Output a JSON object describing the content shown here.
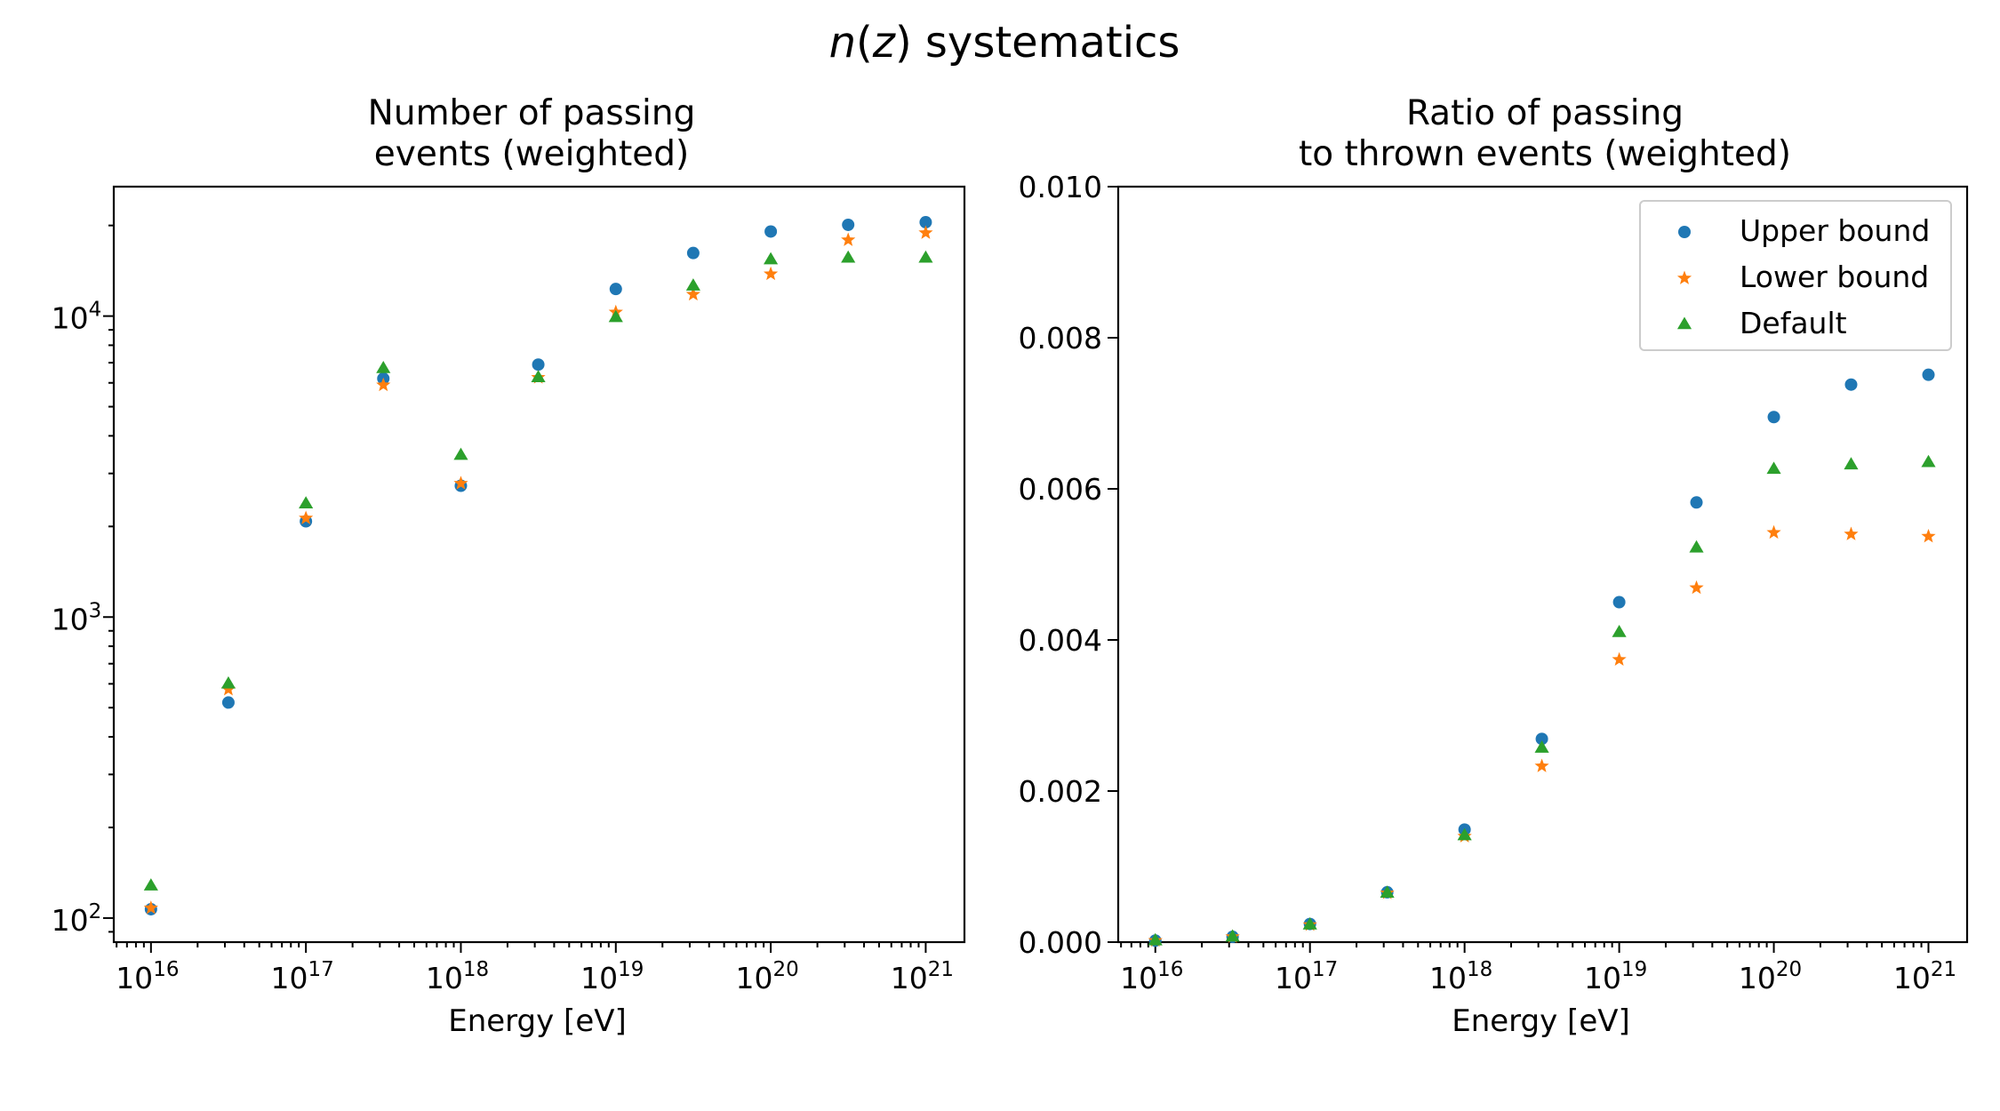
{
  "figure": {
    "suptitle": {
      "italic_prefix": "n",
      "paren_open": "(",
      "italic_var": "z",
      "rest": ") systematics"
    }
  },
  "chart_data": [
    {
      "type": "scatter",
      "title_lines": [
        "Number of passing",
        "events (weighted)"
      ],
      "xlabel": "Energy [eV]",
      "ylabel": "",
      "xscale": "log",
      "yscale": "log",
      "xlim_log10": [
        15.76,
        21.25
      ],
      "ylim_log10": [
        1.92,
        4.43
      ],
      "x_ticks": [
        {
          "base": "10",
          "exp": "16",
          "log10": 16
        },
        {
          "base": "10",
          "exp": "17",
          "log10": 17
        },
        {
          "base": "10",
          "exp": "18",
          "log10": 18
        },
        {
          "base": "10",
          "exp": "19",
          "log10": 19
        },
        {
          "base": "10",
          "exp": "20",
          "log10": 20
        },
        {
          "base": "10",
          "exp": "21",
          "log10": 21
        }
      ],
      "y_ticks": [
        {
          "base": "10",
          "exp": "2",
          "log10": 2
        },
        {
          "base": "10",
          "exp": "3",
          "log10": 3
        },
        {
          "base": "10",
          "exp": "4",
          "log10": 4
        }
      ],
      "x": [
        1e+16,
        3.16e+16,
        1e+17,
        3.16e+17,
        1e+18,
        3.16e+18,
        1e+19,
        3.16e+19,
        1e+20,
        3.16e+20,
        1e+21
      ],
      "series": [
        {
          "name": "Upper bound",
          "marker": "circle",
          "color": "#1f77b4",
          "values": [
            107,
            520,
            2080,
            6200,
            2730,
            6900,
            12300,
            16200,
            19100,
            20100,
            20500
          ]
        },
        {
          "name": "Lower bound",
          "marker": "star",
          "color": "#ff7f0e",
          "values": [
            108,
            575,
            2130,
            5900,
            2780,
            6250,
            10300,
            11800,
            13800,
            17900,
            18900
          ]
        },
        {
          "name": "Default",
          "marker": "triangle",
          "color": "#2ca02c",
          "values": [
            128,
            600,
            2380,
            6700,
            3450,
            6250,
            9900,
            12600,
            15400,
            15600,
            15600
          ]
        }
      ],
      "grid": false,
      "legend": false
    },
    {
      "type": "scatter",
      "title_lines": [
        "Ratio of passing",
        "to thrown events (weighted)"
      ],
      "xlabel": "Energy [eV]",
      "ylabel": "",
      "xscale": "log",
      "yscale": "linear",
      "xlim_log10": [
        15.76,
        21.25
      ],
      "ylim": [
        0,
        0.01
      ],
      "x_ticks": [
        {
          "base": "10",
          "exp": "16",
          "log10": 16
        },
        {
          "base": "10",
          "exp": "17",
          "log10": 17
        },
        {
          "base": "10",
          "exp": "18",
          "log10": 18
        },
        {
          "base": "10",
          "exp": "19",
          "log10": 19
        },
        {
          "base": "10",
          "exp": "20",
          "log10": 20
        },
        {
          "base": "10",
          "exp": "21",
          "log10": 21
        }
      ],
      "y_ticks": [
        {
          "label": "0.000",
          "value": 0
        },
        {
          "label": "0.002",
          "value": 0.002
        },
        {
          "label": "0.004",
          "value": 0.004
        },
        {
          "label": "0.006",
          "value": 0.006
        },
        {
          "label": "0.008",
          "value": 0.008
        },
        {
          "label": "0.010",
          "value": 0.01
        }
      ],
      "x": [
        1e+16,
        3.16e+16,
        1e+17,
        3.16e+17,
        1e+18,
        3.16e+18,
        1e+19,
        3.16e+19,
        1e+20,
        3.16e+20,
        1e+21
      ],
      "series": [
        {
          "name": "Upper bound",
          "marker": "circle",
          "color": "#1f77b4",
          "values": [
            2e-05,
            7e-05,
            0.00024,
            0.00066,
            0.00149,
            0.00269,
            0.0045,
            0.00582,
            0.00695,
            0.00738,
            0.00751
          ]
        },
        {
          "name": "Lower bound",
          "marker": "star",
          "color": "#ff7f0e",
          "values": [
            2e-05,
            7e-05,
            0.00023,
            0.00065,
            0.0014,
            0.00233,
            0.00374,
            0.00469,
            0.00542,
            0.0054,
            0.00537
          ]
        },
        {
          "name": "Default",
          "marker": "triangle",
          "color": "#2ca02c",
          "values": [
            2e-05,
            7e-05,
            0.00023,
            0.00065,
            0.00141,
            0.00257,
            0.0041,
            0.00522,
            0.00626,
            0.00632,
            0.00635
          ]
        }
      ],
      "grid": false,
      "legend": {
        "placement": "upper right",
        "entries": [
          "Upper bound",
          "Lower bound",
          "Default"
        ]
      }
    }
  ]
}
